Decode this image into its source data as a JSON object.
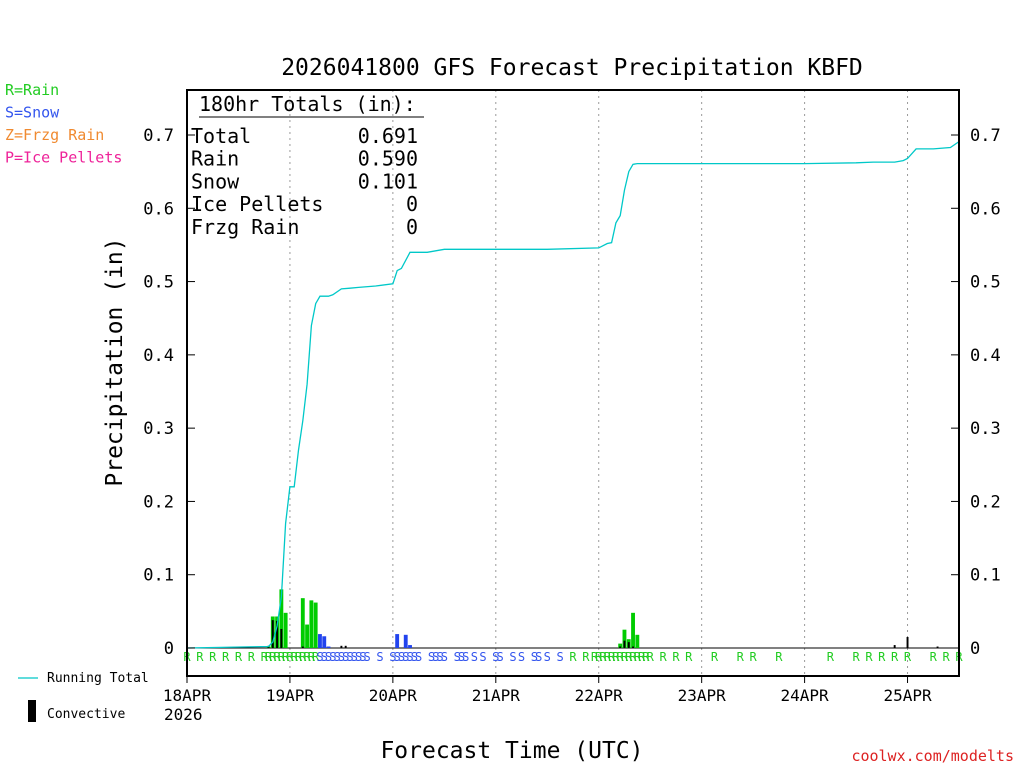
{
  "chart_data": {
    "type": "bar+line",
    "title": "2026041800 GFS Forecast Precipitation KBFD",
    "xlabel": "Forecast Time (UTC)",
    "ylabel": "Precipitation (in)",
    "ylim": [
      0,
      0.76
    ],
    "y_ticks": [
      0,
      0.1,
      0.2,
      0.3,
      0.4,
      0.5,
      0.6,
      0.7
    ],
    "y_tick_labels": [
      "0",
      "0.1",
      "0.2",
      "0.3",
      "0.4",
      "0.5",
      "0.6",
      "0.7"
    ],
    "x_range_hours": [
      0,
      180
    ],
    "x_ticks_hours": [
      0,
      24,
      48,
      72,
      96,
      120,
      144,
      168
    ],
    "x_tick_labels": [
      "18APR",
      "19APR",
      "20APR",
      "21APR",
      "22APR",
      "23APR",
      "24APR",
      "25APR"
    ],
    "x_year_label": "2026",
    "legend_left": [
      {
        "text": "R=Rain",
        "color": "#22cc22"
      },
      {
        "text": "S=Snow",
        "color": "#3355ee"
      },
      {
        "text": "Z=Frzg Rain",
        "color": "#f08a30"
      },
      {
        "text": "P=Ice Pellets",
        "color": "#ee2299"
      }
    ],
    "legend_bottom": [
      {
        "text": "Running Total",
        "color": "#00c8c8",
        "kind": "line"
      },
      {
        "text": "Convective",
        "color": "#000000",
        "kind": "bar"
      }
    ],
    "totals_box": {
      "header": "180hr Totals (in):",
      "rows": [
        {
          "label": "Total",
          "value": "0.691"
        },
        {
          "label": "Rain",
          "value": "0.590"
        },
        {
          "label": "Snow",
          "value": "0.101"
        },
        {
          "label": "Ice Pellets",
          "value": "0"
        },
        {
          "label": "Frzg Rain",
          "value": "0"
        }
      ]
    },
    "running_total": {
      "name": "Running Total",
      "color": "#00c8c8",
      "x_hours": [
        0,
        19,
        20,
        21,
        22,
        22.5,
        23,
        24,
        24.5,
        25,
        26,
        27,
        28,
        29,
        30,
        31,
        32,
        33,
        34,
        36,
        38,
        40,
        44,
        48,
        49,
        50,
        52,
        56,
        60,
        72,
        84,
        96,
        98,
        99,
        100,
        101,
        102,
        103,
        104,
        105,
        106,
        108,
        112,
        120,
        132,
        144,
        156,
        160,
        165,
        167,
        168,
        170,
        174,
        178,
        180
      ],
      "values": [
        0,
        0.002,
        0.008,
        0.03,
        0.07,
        0.12,
        0.17,
        0.22,
        0.22,
        0.22,
        0.27,
        0.31,
        0.36,
        0.44,
        0.47,
        0.48,
        0.48,
        0.48,
        0.482,
        0.49,
        0.491,
        0.492,
        0.494,
        0.497,
        0.515,
        0.518,
        0.54,
        0.54,
        0.544,
        0.544,
        0.544,
        0.546,
        0.552,
        0.553,
        0.58,
        0.59,
        0.625,
        0.65,
        0.66,
        0.661,
        0.661,
        0.661,
        0.661,
        0.661,
        0.661,
        0.661,
        0.662,
        0.663,
        0.663,
        0.665,
        0.668,
        0.681,
        0.681,
        0.683,
        0.691
      ]
    },
    "bars_rain": {
      "name": "Rain",
      "color": "#00cc00",
      "x_hours": [
        19,
        20,
        21,
        22,
        23,
        24,
        27,
        28,
        29,
        30,
        101,
        102,
        103,
        104,
        105
      ],
      "values": [
        0.002,
        0.043,
        0.043,
        0.08,
        0.048,
        0.0,
        0.068,
        0.032,
        0.065,
        0.062,
        0.006,
        0.025,
        0.012,
        0.048,
        0.018
      ]
    },
    "bars_snow": {
      "name": "Snow",
      "color": "#2244ee",
      "x_hours": [
        31,
        32,
        33,
        49,
        51,
        52
      ],
      "values": [
        0.019,
        0.016,
        0.002,
        0.019,
        0.018,
        0.004
      ]
    },
    "bars_convective": {
      "name": "Convective",
      "color": "#000000",
      "x_hours": [
        19,
        20,
        21,
        22,
        27,
        36,
        37,
        101,
        102,
        103,
        104,
        165,
        168,
        175,
        180
      ],
      "values": [
        0.003,
        0.038,
        0.037,
        0.026,
        0.002,
        0.003,
        0.003,
        0.002,
        0.01,
        0.008,
        0.002,
        0.004,
        0.015,
        0.002,
        0.01
      ]
    },
    "ptype_markers": [
      {
        "hour": 0,
        "type": "R"
      },
      {
        "hour": 3,
        "type": "R"
      },
      {
        "hour": 6,
        "type": "R"
      },
      {
        "hour": 9,
        "type": "R"
      },
      {
        "hour": 12,
        "type": "R"
      },
      {
        "hour": 15,
        "type": "R"
      },
      {
        "hour": 18,
        "type": "R"
      },
      {
        "hour": 19,
        "type": "R"
      },
      {
        "hour": 20,
        "type": "R"
      },
      {
        "hour": 21,
        "type": "R"
      },
      {
        "hour": 22,
        "type": "R"
      },
      {
        "hour": 23,
        "type": "R"
      },
      {
        "hour": 24,
        "type": "R"
      },
      {
        "hour": 25,
        "type": "R"
      },
      {
        "hour": 26,
        "type": "R"
      },
      {
        "hour": 27,
        "type": "R"
      },
      {
        "hour": 28,
        "type": "R"
      },
      {
        "hour": 29,
        "type": "R"
      },
      {
        "hour": 30,
        "type": "R"
      },
      {
        "hour": 31,
        "type": "S"
      },
      {
        "hour": 32,
        "type": "S"
      },
      {
        "hour": 33,
        "type": "S"
      },
      {
        "hour": 34,
        "type": "S"
      },
      {
        "hour": 35,
        "type": "S"
      },
      {
        "hour": 36,
        "type": "S"
      },
      {
        "hour": 37,
        "type": "S"
      },
      {
        "hour": 38,
        "type": "S"
      },
      {
        "hour": 39,
        "type": "S"
      },
      {
        "hour": 40,
        "type": "S"
      },
      {
        "hour": 41,
        "type": "S"
      },
      {
        "hour": 42,
        "type": "S"
      },
      {
        "hour": 45,
        "type": "S"
      },
      {
        "hour": 48,
        "type": "S"
      },
      {
        "hour": 49,
        "type": "S"
      },
      {
        "hour": 50,
        "type": "S"
      },
      {
        "hour": 51,
        "type": "S"
      },
      {
        "hour": 52,
        "type": "S"
      },
      {
        "hour": 53,
        "type": "S"
      },
      {
        "hour": 54,
        "type": "S"
      },
      {
        "hour": 57,
        "type": "S"
      },
      {
        "hour": 58,
        "type": "S"
      },
      {
        "hour": 59,
        "type": "S"
      },
      {
        "hour": 60,
        "type": "S"
      },
      {
        "hour": 63,
        "type": "S"
      },
      {
        "hour": 64,
        "type": "S"
      },
      {
        "hour": 65,
        "type": "S"
      },
      {
        "hour": 67,
        "type": "S"
      },
      {
        "hour": 69,
        "type": "S"
      },
      {
        "hour": 72,
        "type": "S"
      },
      {
        "hour": 73,
        "type": "S"
      },
      {
        "hour": 76,
        "type": "S"
      },
      {
        "hour": 78,
        "type": "S"
      },
      {
        "hour": 81,
        "type": "S"
      },
      {
        "hour": 82,
        "type": "S"
      },
      {
        "hour": 84,
        "type": "S"
      },
      {
        "hour": 87,
        "type": "S"
      },
      {
        "hour": 90,
        "type": "R"
      },
      {
        "hour": 93,
        "type": "R"
      },
      {
        "hour": 95,
        "type": "R"
      },
      {
        "hour": 96,
        "type": "R"
      },
      {
        "hour": 97,
        "type": "R"
      },
      {
        "hour": 98,
        "type": "R"
      },
      {
        "hour": 99,
        "type": "R"
      },
      {
        "hour": 100,
        "type": "R"
      },
      {
        "hour": 101,
        "type": "R"
      },
      {
        "hour": 102,
        "type": "R"
      },
      {
        "hour": 103,
        "type": "R"
      },
      {
        "hour": 104,
        "type": "R"
      },
      {
        "hour": 105,
        "type": "R"
      },
      {
        "hour": 106,
        "type": "R"
      },
      {
        "hour": 107,
        "type": "R"
      },
      {
        "hour": 108,
        "type": "R"
      },
      {
        "hour": 111,
        "type": "R"
      },
      {
        "hour": 114,
        "type": "R"
      },
      {
        "hour": 117,
        "type": "R"
      },
      {
        "hour": 123,
        "type": "R"
      },
      {
        "hour": 129,
        "type": "R"
      },
      {
        "hour": 132,
        "type": "R"
      },
      {
        "hour": 138,
        "type": "R"
      },
      {
        "hour": 150,
        "type": "R"
      },
      {
        "hour": 156,
        "type": "R"
      },
      {
        "hour": 159,
        "type": "R"
      },
      {
        "hour": 162,
        "type": "R"
      },
      {
        "hour": 165,
        "type": "R"
      },
      {
        "hour": 168,
        "type": "R"
      },
      {
        "hour": 174,
        "type": "R"
      },
      {
        "hour": 177,
        "type": "R"
      },
      {
        "hour": 180,
        "type": "R"
      }
    ],
    "ptype_colors": {
      "R": "#22cc22",
      "S": "#3355ee",
      "Z": "#f08a30",
      "P": "#ee2299"
    },
    "credit": "coolwx.com/modelts",
    "credit_color": "#dd2222"
  }
}
